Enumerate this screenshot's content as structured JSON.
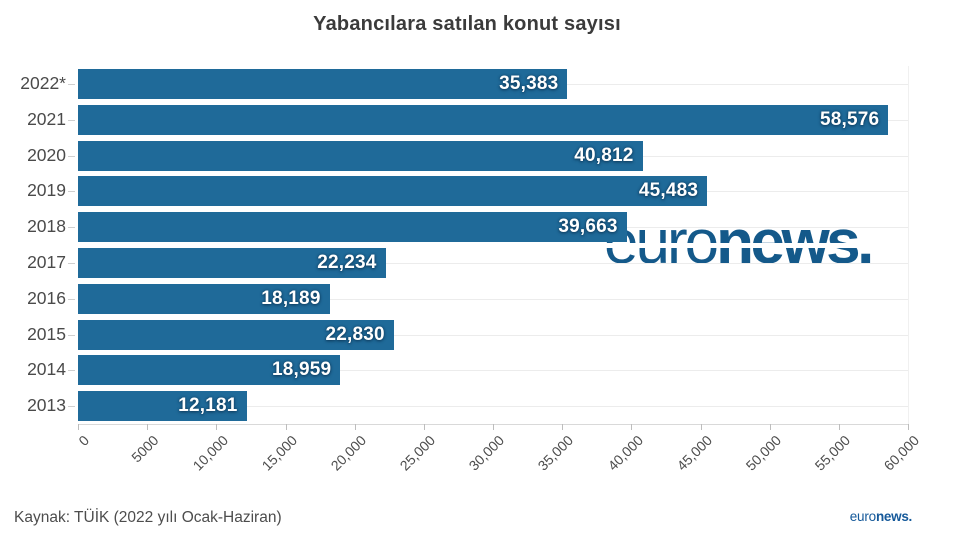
{
  "title": "Yabancılara satılan konut sayısı",
  "source": "Kaynak: TÜİK (2022 yılı Ocak-Haziran)",
  "watermark": {
    "prefix": "euro",
    "suffix": "news."
  },
  "footer_logo": {
    "prefix": "euro",
    "suffix": "news."
  },
  "colors": {
    "bar": "#1f6a99",
    "value_text": "#ffffff",
    "watermark": "#14598a",
    "footer_logo": "#15599a",
    "title_text": "#3b3b3b",
    "axis_text": "#4d4d4d"
  },
  "chart_data": {
    "type": "bar",
    "orientation": "horizontal",
    "title": "Yabancılara satılan konut sayısı",
    "categories": [
      "2022*",
      "2021",
      "2020",
      "2019",
      "2018",
      "2017",
      "2016",
      "2015",
      "2014",
      "2013"
    ],
    "values": [
      35383,
      58576,
      40812,
      45483,
      39663,
      22234,
      18189,
      22830,
      18959,
      12181
    ],
    "value_labels": [
      "35,383",
      "58,576",
      "40,812",
      "45,483",
      "39,663",
      "22,234",
      "18,189",
      "22,830",
      "18,959",
      "12,181"
    ],
    "xlim": [
      0,
      60000
    ],
    "x_tick_step": 5000,
    "x_tick_labels": [
      "0",
      "5000",
      "10,000",
      "15,000",
      "20,000",
      "25,000",
      "30,000",
      "35,000",
      "40,000",
      "45,000",
      "50,000",
      "55,000",
      "60,000"
    ],
    "grid": "horizontal-row-lines",
    "legend": "none",
    "source": "Kaynak: TÜİK (2022 yılı Ocak-Haziran)"
  }
}
